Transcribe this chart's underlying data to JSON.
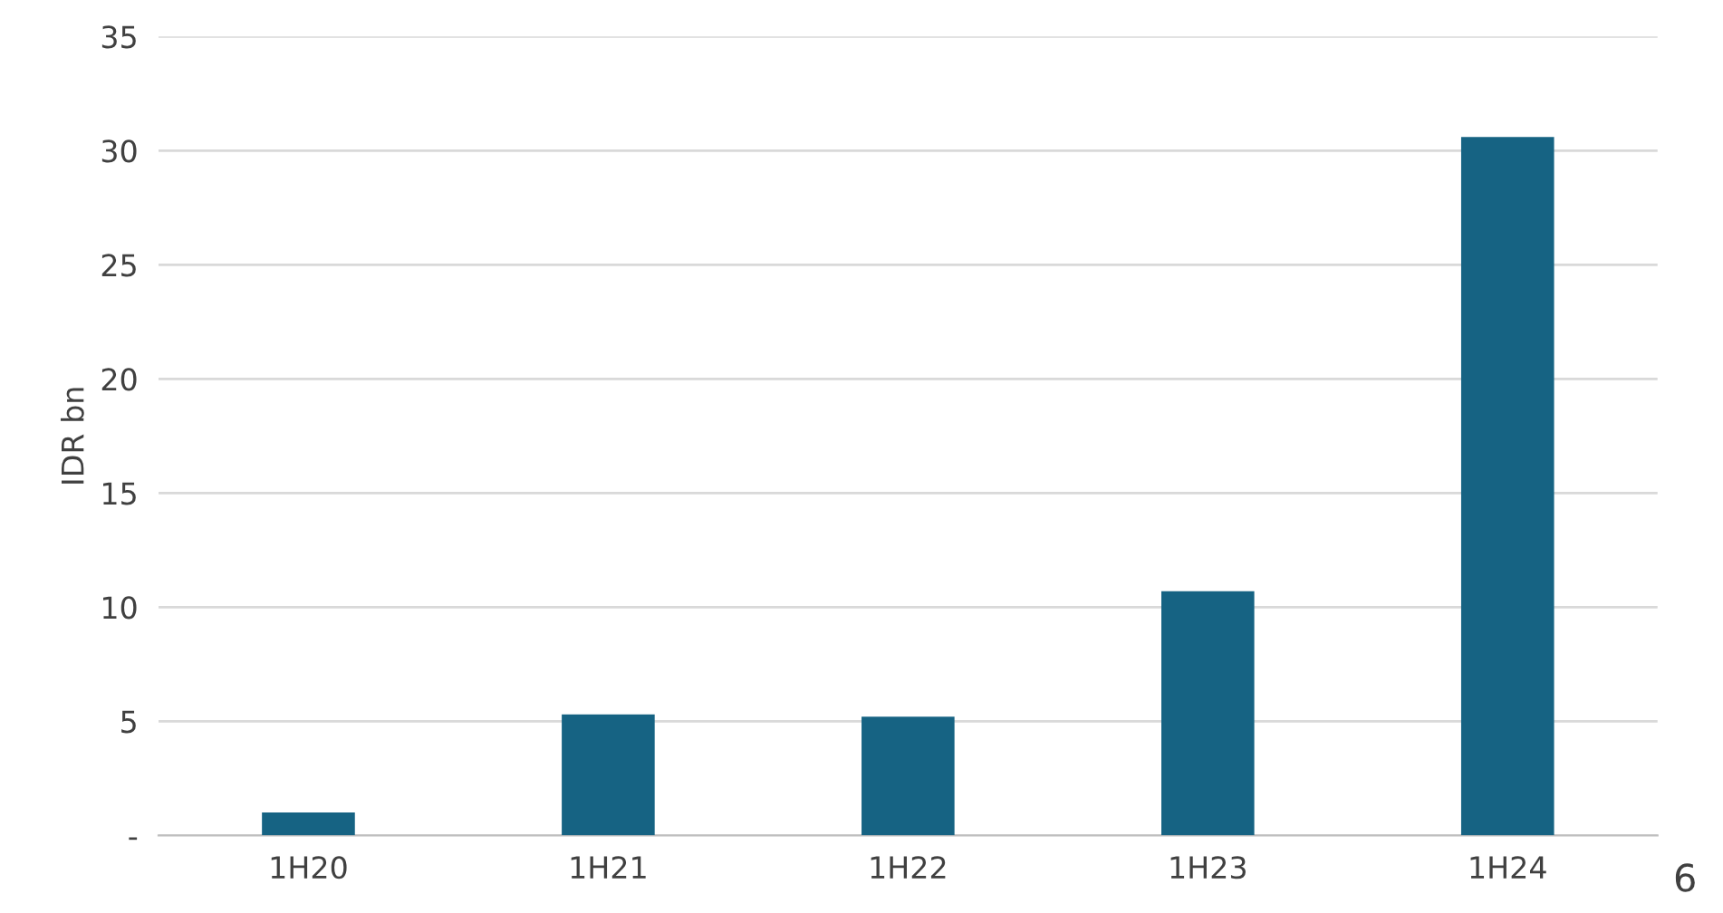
{
  "chart_data": {
    "type": "bar",
    "ylabel": "IDR bn",
    "categories": [
      "1H20",
      "1H21",
      "1H22",
      "1H23",
      "1H24"
    ],
    "values": [
      1.0,
      5.3,
      5.2,
      10.7,
      30.6
    ],
    "color": "#166383",
    "ylim": [
      0,
      35
    ],
    "yticks": [
      {
        "value": 0,
        "label": "-"
      },
      5,
      10,
      15,
      20,
      25,
      30,
      35
    ],
    "grid": "y",
    "annotations": [
      "6"
    ]
  }
}
